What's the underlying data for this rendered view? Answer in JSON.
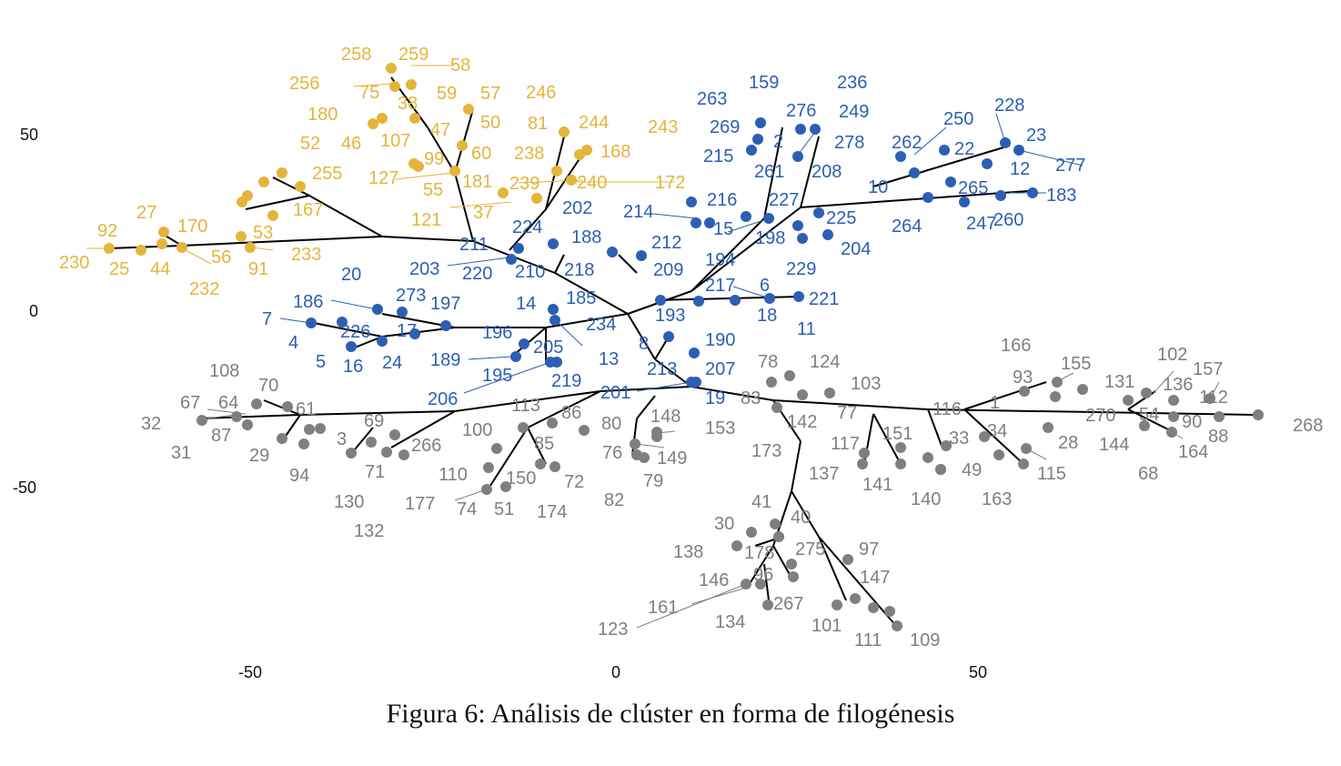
{
  "caption": "Figura 6: Análisis de clúster en forma de filogénesis",
  "colors": {
    "cluster_1": "#E3B53C",
    "cluster_2": "#2C5FB3",
    "cluster_3": "#7F7F7F",
    "branch": "#000000"
  },
  "x_ticks": [
    "-50",
    "0",
    "50"
  ],
  "y_ticks": [
    "50",
    "0",
    "-50"
  ],
  "clusters": [
    {
      "color_key": "cluster_1",
      "labels": [
        "258",
        "259",
        "58",
        "256",
        "75",
        "38",
        "59",
        "57",
        "246",
        "180",
        "50",
        "47",
        "81",
        "244",
        "243",
        "52",
        "46",
        "107",
        "60",
        "238",
        "168",
        "99",
        "127",
        "181",
        "255",
        "55",
        "239",
        "240",
        "172",
        "167",
        "37",
        "121",
        "27",
        "170",
        "92",
        "53",
        "230",
        "25",
        "44",
        "56",
        "91",
        "233",
        "232"
      ]
    },
    {
      "color_key": "cluster_2",
      "labels": [
        "159",
        "236",
        "263",
        "276",
        "249",
        "269",
        "2",
        "278",
        "261",
        "215",
        "262",
        "250",
        "228",
        "23",
        "22",
        "208",
        "12",
        "277",
        "216",
        "227",
        "265",
        "183",
        "214",
        "10",
        "202",
        "15",
        "225",
        "224",
        "198",
        "264",
        "247",
        "260",
        "194",
        "212",
        "188",
        "204",
        "211",
        "229",
        "218",
        "203",
        "220",
        "210",
        "209",
        "20",
        "217",
        "6",
        "273",
        "221",
        "186",
        "197",
        "18",
        "14",
        "185",
        "11",
        "7",
        "234",
        "193",
        "226",
        "17",
        "4",
        "190",
        "5",
        "196",
        "16",
        "24",
        "205",
        "13",
        "189",
        "8",
        "207",
        "219",
        "195",
        "213",
        "206",
        "201",
        "19"
      ]
    },
    {
      "color_key": "cluster_3",
      "labels": [
        "78",
        "124",
        "166",
        "102",
        "155",
        "108",
        "157",
        "103",
        "93",
        "131",
        "136",
        "70",
        "112",
        "67",
        "64",
        "83",
        "1",
        "61",
        "77",
        "116",
        "270",
        "54",
        "32",
        "90",
        "268",
        "113",
        "86",
        "69",
        "142",
        "34",
        "151",
        "28",
        "144",
        "88",
        "31",
        "87",
        "80",
        "148",
        "153",
        "100",
        "33",
        "117",
        "164",
        "3",
        "29",
        "173",
        "266",
        "68",
        "94",
        "85",
        "49",
        "149",
        "115",
        "71",
        "76",
        "137",
        "130",
        "110",
        "150",
        "72",
        "79",
        "141",
        "140",
        "163",
        "177",
        "74",
        "51",
        "174",
        "82",
        "132",
        "41",
        "30",
        "40",
        "97",
        "275",
        "178",
        "138",
        "96",
        "147",
        "146",
        "267",
        "161",
        "134",
        "101",
        "123",
        "111",
        "109"
      ]
    }
  ]
}
